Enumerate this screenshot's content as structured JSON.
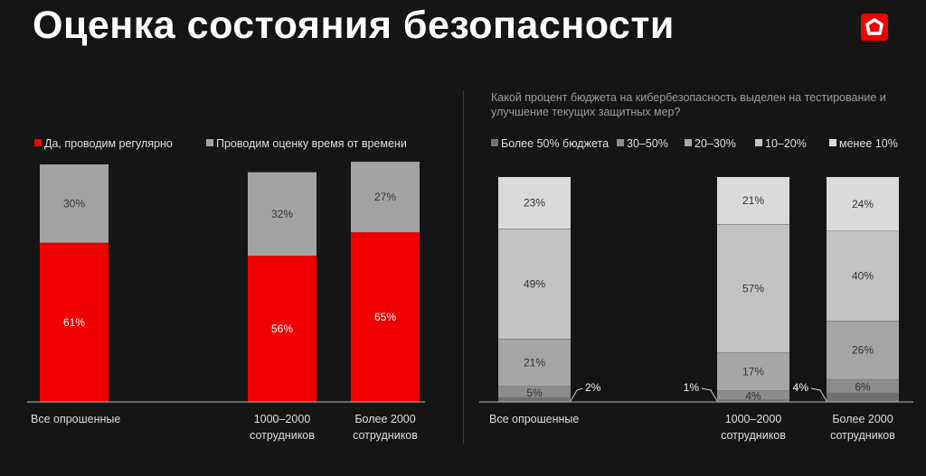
{
  "title": "Оценка состояния безопасности",
  "logo": {
    "icon": "pentagon-ring-logo",
    "color": "#f20000"
  },
  "chart_data": [
    {
      "type": "bar",
      "stacked": true,
      "categories": [
        "Все опрошенные",
        "1000–2000 сотрудников",
        "Более 2000 сотрудников"
      ],
      "category_lines": [
        [
          "Все опрошенные"
        ],
        [
          "1000–2000",
          "сотрудников"
        ],
        [
          "Более 2000",
          "сотрудников"
        ]
      ],
      "legend_position": "top-left",
      "grid": false,
      "ylim": [
        0,
        100
      ],
      "series": [
        {
          "name": "Да, проводим регулярно",
          "color": "#f20000",
          "values": [
            61,
            56,
            65
          ]
        },
        {
          "name": "Проводим оценку время от времени",
          "color": "#a3a3a3",
          "values": [
            30,
            32,
            27
          ]
        }
      ]
    },
    {
      "type": "bar",
      "stacked": true,
      "title": "Какой процент бюджета на кибербезопасность выделен на тестирование и улучшение текущих защитных мер?",
      "categories": [
        "Все опрошенные",
        "1000–2000 сотрудников",
        "Более 2000 сотрудников"
      ],
      "category_lines": [
        [
          "Все опрошенные"
        ],
        [
          "1000–2000",
          "сотрудников"
        ],
        [
          "Более 2000",
          "сотрудников"
        ]
      ],
      "legend_position": "top-left",
      "grid": false,
      "ylim": [
        0,
        100
      ],
      "series": [
        {
          "name": "Более 50% бюджета",
          "color": "#6f6f6f",
          "values": [
            2,
            1,
            4
          ]
        },
        {
          "name": "30–50%",
          "color": "#8c8c8c",
          "values": [
            5,
            4,
            6
          ]
        },
        {
          "name": "20–30%",
          "color": "#a6a6a6",
          "values": [
            21,
            17,
            26
          ]
        },
        {
          "name": "10–20%",
          "color": "#c2c2c2",
          "values": [
            49,
            57,
            40
          ]
        },
        {
          "name": "менее 10%",
          "color": "#dadada",
          "values": [
            23,
            21,
            24
          ]
        }
      ]
    }
  ]
}
